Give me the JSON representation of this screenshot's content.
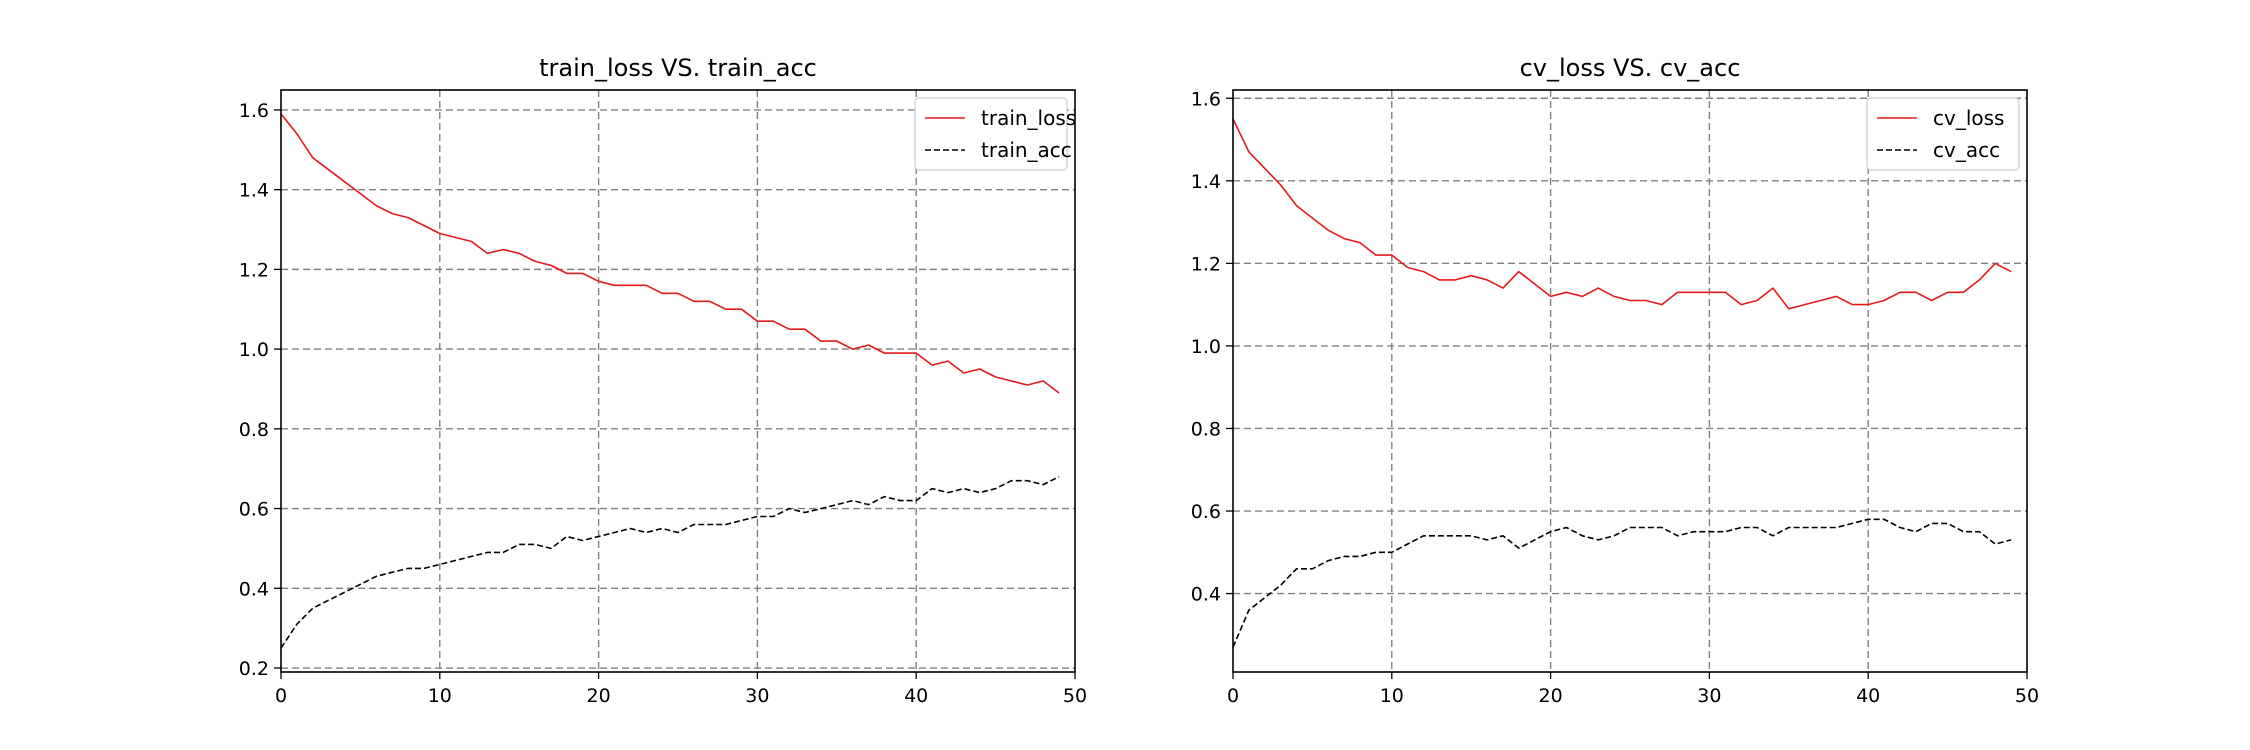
{
  "chart_data": [
    {
      "type": "line",
      "title": "train_loss VS. train_acc",
      "xlabel": "",
      "ylabel": "",
      "xlim": [
        0,
        50
      ],
      "ylim": [
        0.19,
        1.65
      ],
      "xticks": [
        0,
        10,
        20,
        30,
        40,
        50
      ],
      "yticks": [
        0.2,
        0.4,
        0.6,
        0.8,
        1.0,
        1.2,
        1.4,
        1.6
      ],
      "grid": true,
      "legend_position": "upper-right",
      "x": [
        0,
        1,
        2,
        3,
        4,
        5,
        6,
        7,
        8,
        9,
        10,
        11,
        12,
        13,
        14,
        15,
        16,
        17,
        18,
        19,
        20,
        21,
        22,
        23,
        24,
        25,
        26,
        27,
        28,
        29,
        30,
        31,
        32,
        33,
        34,
        35,
        36,
        37,
        38,
        39,
        40,
        41,
        42,
        43,
        44,
        45,
        46,
        47,
        48,
        49
      ],
      "series": [
        {
          "name": "train_loss",
          "color": "#e31a1c",
          "style": "solid",
          "values": [
            1.59,
            1.54,
            1.48,
            1.45,
            1.42,
            1.39,
            1.36,
            1.34,
            1.33,
            1.31,
            1.29,
            1.28,
            1.27,
            1.24,
            1.25,
            1.24,
            1.22,
            1.21,
            1.19,
            1.19,
            1.17,
            1.16,
            1.16,
            1.16,
            1.14,
            1.14,
            1.12,
            1.12,
            1.1,
            1.1,
            1.07,
            1.07,
            1.05,
            1.05,
            1.02,
            1.02,
            1.0,
            1.01,
            0.99,
            0.99,
            0.99,
            0.96,
            0.97,
            0.94,
            0.95,
            0.93,
            0.92,
            0.91,
            0.92,
            0.89
          ]
        },
        {
          "name": "train_acc",
          "color": "#000000",
          "style": "dashed",
          "values": [
            0.25,
            0.31,
            0.35,
            0.37,
            0.39,
            0.41,
            0.43,
            0.44,
            0.45,
            0.45,
            0.46,
            0.47,
            0.48,
            0.49,
            0.49,
            0.51,
            0.51,
            0.5,
            0.53,
            0.52,
            0.53,
            0.54,
            0.55,
            0.54,
            0.55,
            0.54,
            0.56,
            0.56,
            0.56,
            0.57,
            0.58,
            0.58,
            0.6,
            0.59,
            0.6,
            0.61,
            0.62,
            0.61,
            0.63,
            0.62,
            0.62,
            0.65,
            0.64,
            0.65,
            0.64,
            0.65,
            0.67,
            0.67,
            0.66,
            0.68
          ]
        }
      ]
    },
    {
      "type": "line",
      "title": "cv_loss VS. cv_acc",
      "xlabel": "",
      "ylabel": "",
      "xlim": [
        0,
        50
      ],
      "ylim": [
        0.21,
        1.62
      ],
      "xticks": [
        0,
        10,
        20,
        30,
        40,
        50
      ],
      "yticks": [
        0.4,
        0.6,
        0.8,
        1.0,
        1.2,
        1.4,
        1.6
      ],
      "grid": true,
      "legend_position": "upper-right",
      "x": [
        0,
        1,
        2,
        3,
        4,
        5,
        6,
        7,
        8,
        9,
        10,
        11,
        12,
        13,
        14,
        15,
        16,
        17,
        18,
        19,
        20,
        21,
        22,
        23,
        24,
        25,
        26,
        27,
        28,
        29,
        30,
        31,
        32,
        33,
        34,
        35,
        36,
        37,
        38,
        39,
        40,
        41,
        42,
        43,
        44,
        45,
        46,
        47,
        48,
        49
      ],
      "series": [
        {
          "name": "cv_loss",
          "color": "#e31a1c",
          "style": "solid",
          "values": [
            1.55,
            1.47,
            1.43,
            1.39,
            1.34,
            1.31,
            1.28,
            1.26,
            1.25,
            1.22,
            1.22,
            1.19,
            1.18,
            1.16,
            1.16,
            1.17,
            1.16,
            1.14,
            1.18,
            1.15,
            1.12,
            1.13,
            1.12,
            1.14,
            1.12,
            1.11,
            1.11,
            1.1,
            1.13,
            1.13,
            1.13,
            1.13,
            1.1,
            1.11,
            1.14,
            1.09,
            1.1,
            1.11,
            1.12,
            1.1,
            1.1,
            1.11,
            1.13,
            1.13,
            1.11,
            1.13,
            1.13,
            1.16,
            1.2,
            1.18
          ]
        },
        {
          "name": "cv_acc",
          "color": "#000000",
          "style": "dashed",
          "values": [
            0.27,
            0.36,
            0.39,
            0.42,
            0.46,
            0.46,
            0.48,
            0.49,
            0.49,
            0.5,
            0.5,
            0.52,
            0.54,
            0.54,
            0.54,
            0.54,
            0.53,
            0.54,
            0.51,
            0.53,
            0.55,
            0.56,
            0.54,
            0.53,
            0.54,
            0.56,
            0.56,
            0.56,
            0.54,
            0.55,
            0.55,
            0.55,
            0.56,
            0.56,
            0.54,
            0.56,
            0.56,
            0.56,
            0.56,
            0.57,
            0.58,
            0.58,
            0.56,
            0.55,
            0.57,
            0.57,
            0.55,
            0.55,
            0.52,
            0.53
          ]
        }
      ]
    }
  ]
}
